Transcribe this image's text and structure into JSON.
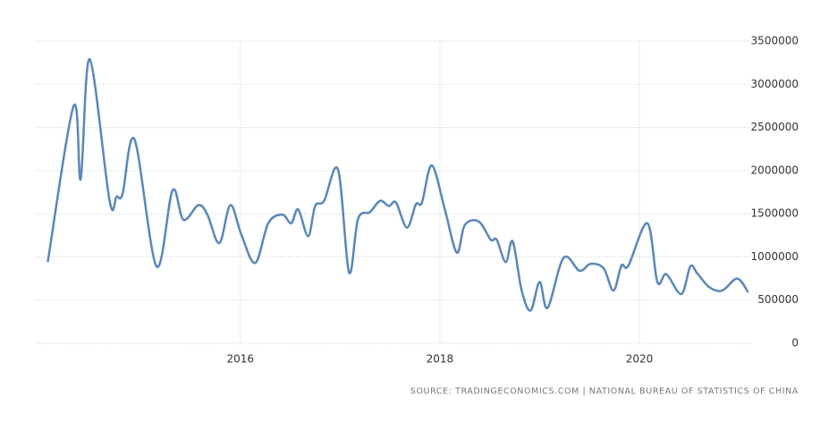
{
  "chart_data": {
    "type": "line",
    "source": "SOURCE: TRADINGECONOMICS.COM | NATIONAL BUREAU OF STATISTICS OF CHINA",
    "x": [
      2014.07,
      2014.33,
      2014.4,
      2014.49,
      2014.69,
      2014.76,
      2014.82,
      2014.94,
      2015.16,
      2015.32,
      2015.43,
      2015.58,
      2015.67,
      2015.79,
      2015.9,
      2016.01,
      2016.15,
      2016.28,
      2016.42,
      2016.51,
      2016.58,
      2016.68,
      2016.75,
      2016.84,
      2016.98,
      2017.09,
      2017.18,
      2017.3,
      2017.4,
      2017.49,
      2017.56,
      2017.67,
      2017.76,
      2017.82,
      2017.92,
      2018.05,
      2018.17,
      2018.25,
      2018.39,
      2018.51,
      2018.57,
      2018.66,
      2018.73,
      2018.82,
      2018.91,
      2019.0,
      2019.08,
      2019.24,
      2019.4,
      2019.51,
      2019.64,
      2019.74,
      2019.82,
      2019.89,
      2020.08,
      2020.18,
      2020.27,
      2020.42,
      2020.51,
      2020.58,
      2020.7,
      2020.83,
      2020.98,
      2021.09
    ],
    "series": [
      {
        "color": "#5a87b8",
        "values": [
          940000,
          2750000,
          1900000,
          3290000,
          1650000,
          1700000,
          1730000,
          2360000,
          890000,
          1770000,
          1430000,
          1600000,
          1490000,
          1160000,
          1600000,
          1260000,
          930000,
          1390000,
          1490000,
          1390000,
          1550000,
          1240000,
          1590000,
          1650000,
          2010000,
          820000,
          1440000,
          1520000,
          1650000,
          1590000,
          1630000,
          1340000,
          1610000,
          1630000,
          2060000,
          1550000,
          1050000,
          1370000,
          1410000,
          1200000,
          1200000,
          940000,
          1180000,
          610000,
          380000,
          710000,
          410000,
          990000,
          840000,
          920000,
          870000,
          610000,
          900000,
          900000,
          1390000,
          710000,
          800000,
          570000,
          890000,
          810000,
          650000,
          610000,
          750000,
          590000
        ]
      }
    ],
    "xlim": [
      2013.95,
      2021.12
    ],
    "xticks": [
      2016,
      2018,
      2020
    ],
    "ylim": [
      0,
      3500000
    ],
    "yticks": [
      0,
      500000,
      1000000,
      1500000,
      2000000,
      2500000,
      3000000,
      3500000
    ],
    "grid": true
  }
}
